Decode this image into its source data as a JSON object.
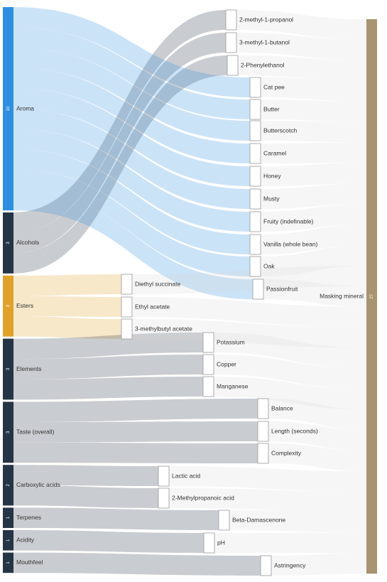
{
  "chart_data": {
    "type": "sankey",
    "nodes": [
      {
        "name": "Aroma",
        "value": 10,
        "color": "#2e8fe0"
      },
      {
        "name": "Alcohols",
        "value": 3,
        "color": "#263545"
      },
      {
        "name": "Esters",
        "value": 3,
        "color": "#e0a22a"
      },
      {
        "name": "Elements",
        "value": 3,
        "color": "#263545"
      },
      {
        "name": "Taste (overall)",
        "value": 3,
        "color": "#263545"
      },
      {
        "name": "Carboxylic acids",
        "value": 2,
        "color": "#263545"
      },
      {
        "name": "Terpenes",
        "value": 1,
        "color": "#263545"
      },
      {
        "name": "Acidity",
        "value": 1,
        "color": "#263545"
      },
      {
        "name": "Mouthfeel",
        "value": 1,
        "color": "#263545"
      },
      {
        "name": "2-methyl-1-propanol",
        "color": "#ffffff"
      },
      {
        "name": "3-methyl-1-butanol",
        "color": "#ffffff"
      },
      {
        "name": "2-Phenylethanol",
        "color": "#ffffff"
      },
      {
        "name": "Cat pee",
        "color": "#ffffff"
      },
      {
        "name": "Butter",
        "color": "#ffffff"
      },
      {
        "name": "Butterscotch",
        "color": "#ffffff"
      },
      {
        "name": "Caramel",
        "color": "#ffffff"
      },
      {
        "name": "Honey",
        "color": "#ffffff"
      },
      {
        "name": "Musty",
        "color": "#ffffff"
      },
      {
        "name": "Fruity (indefinable)",
        "color": "#ffffff"
      },
      {
        "name": "Vanilla (whole bean)",
        "color": "#ffffff"
      },
      {
        "name": "Oak",
        "color": "#ffffff"
      },
      {
        "name": "Passionfruit",
        "color": "#ffffff"
      },
      {
        "name": "Diethyl succinate",
        "color": "#ffffff"
      },
      {
        "name": "Ethyl acetate",
        "color": "#ffffff"
      },
      {
        "name": "3-methylbutyl acetate",
        "color": "#ffffff"
      },
      {
        "name": "Potassium",
        "color": "#ffffff"
      },
      {
        "name": "Copper",
        "color": "#ffffff"
      },
      {
        "name": "Manganese",
        "color": "#ffffff"
      },
      {
        "name": "Balance",
        "color": "#ffffff"
      },
      {
        "name": "Length (seconds)",
        "color": "#ffffff"
      },
      {
        "name": "Complexity",
        "color": "#ffffff"
      },
      {
        "name": "Lactic acid",
        "color": "#ffffff"
      },
      {
        "name": "2-Methylpropanoic acid",
        "color": "#ffffff"
      },
      {
        "name": "Beta-Damascenone",
        "color": "#ffffff"
      },
      {
        "name": "pH",
        "color": "#ffffff"
      },
      {
        "name": "Astringency",
        "color": "#ffffff"
      },
      {
        "name": "Masking mineral",
        "value": 27,
        "color": "#a89470"
      }
    ],
    "links": [
      {
        "source": 1,
        "target": 9,
        "value": 1
      },
      {
        "source": 1,
        "target": 10,
        "value": 1
      },
      {
        "source": 1,
        "target": 11,
        "value": 1
      },
      {
        "source": 0,
        "target": 12,
        "value": 1
      },
      {
        "source": 0,
        "target": 13,
        "value": 1
      },
      {
        "source": 0,
        "target": 14,
        "value": 1
      },
      {
        "source": 0,
        "target": 15,
        "value": 1
      },
      {
        "source": 0,
        "target": 16,
        "value": 1
      },
      {
        "source": 0,
        "target": 17,
        "value": 1
      },
      {
        "source": 0,
        "target": 18,
        "value": 1
      },
      {
        "source": 0,
        "target": 19,
        "value": 1
      },
      {
        "source": 0,
        "target": 20,
        "value": 1
      },
      {
        "source": 0,
        "target": 21,
        "value": 1
      },
      {
        "source": 2,
        "target": 22,
        "value": 1
      },
      {
        "source": 2,
        "target": 23,
        "value": 1
      },
      {
        "source": 2,
        "target": 24,
        "value": 1
      },
      {
        "source": 3,
        "target": 25,
        "value": 1
      },
      {
        "source": 3,
        "target": 26,
        "value": 1
      },
      {
        "source": 3,
        "target": 27,
        "value": 1
      },
      {
        "source": 4,
        "target": 28,
        "value": 1
      },
      {
        "source": 4,
        "target": 29,
        "value": 1
      },
      {
        "source": 4,
        "target": 30,
        "value": 1
      },
      {
        "source": 5,
        "target": 31,
        "value": 1
      },
      {
        "source": 5,
        "target": 32,
        "value": 1
      },
      {
        "source": 6,
        "target": 33,
        "value": 1
      },
      {
        "source": 7,
        "target": 34,
        "value": 1
      },
      {
        "source": 8,
        "target": 35,
        "value": 1
      },
      {
        "source": 9,
        "target": 36,
        "value": 1
      },
      {
        "source": 10,
        "target": 36,
        "value": 1
      },
      {
        "source": 11,
        "target": 36,
        "value": 1
      },
      {
        "source": 12,
        "target": 36,
        "value": 1
      },
      {
        "source": 13,
        "target": 36,
        "value": 1
      },
      {
        "source": 14,
        "target": 36,
        "value": 1
      },
      {
        "source": 15,
        "target": 36,
        "value": 1
      },
      {
        "source": 16,
        "target": 36,
        "value": 1
      },
      {
        "source": 17,
        "target": 36,
        "value": 1
      },
      {
        "source": 18,
        "target": 36,
        "value": 1
      },
      {
        "source": 19,
        "target": 36,
        "value": 1
      },
      {
        "source": 20,
        "target": 36,
        "value": 1
      },
      {
        "source": 21,
        "target": 36,
        "value": 1
      },
      {
        "source": 22,
        "target": 36,
        "value": 1
      },
      {
        "source": 23,
        "target": 36,
        "value": 1
      },
      {
        "source": 24,
        "target": 36,
        "value": 1
      },
      {
        "source": 25,
        "target": 36,
        "value": 1
      },
      {
        "source": 26,
        "target": 36,
        "value": 1
      },
      {
        "source": 27,
        "target": 36,
        "value": 1
      },
      {
        "source": 28,
        "target": 36,
        "value": 1
      },
      {
        "source": 29,
        "target": 36,
        "value": 1
      },
      {
        "source": 30,
        "target": 36,
        "value": 1
      },
      {
        "source": 31,
        "target": 36,
        "value": 1
      },
      {
        "source": 32,
        "target": 36,
        "value": 1
      },
      {
        "source": 33,
        "target": 36,
        "value": 1
      },
      {
        "source": 34,
        "target": 36,
        "value": 1
      },
      {
        "source": 35,
        "target": 36,
        "value": 1
      }
    ]
  }
}
